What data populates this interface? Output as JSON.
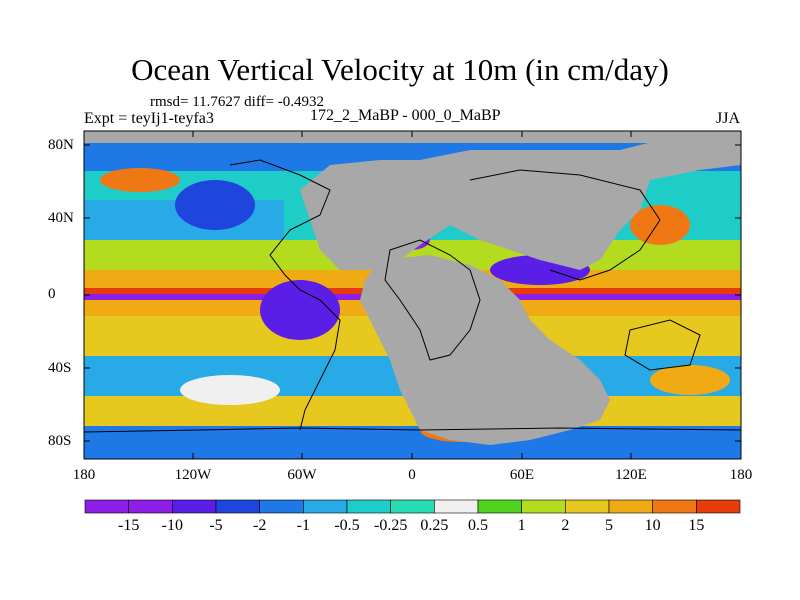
{
  "title": "Ocean Vertical Velocity at 10m (in cm/day)",
  "stats": "rmsd= 11.7627  diff= -0.4932",
  "expt": "Expt = teyIj1-teyfa3",
  "period": "172_2_MaBP - 000_0_MaBP",
  "season": "JJA",
  "lat_labels": [
    "80N",
    "40N",
    "0",
    "40S",
    "80S"
  ],
  "lon_labels": [
    "180",
    "120W",
    "60W",
    "0",
    "60E",
    "120E",
    "180"
  ],
  "colorbar": {
    "labels": [
      "-15",
      "-10",
      "-5",
      "-2",
      "-1",
      "-0.5",
      "-0.25",
      "0.25",
      "0.5",
      "1",
      "2",
      "5",
      "10",
      "15"
    ],
    "colors": [
      "#8c1ee6",
      "#5a1ee6",
      "#1e46dc",
      "#1e78e6",
      "#28aae6",
      "#1ecdc8",
      "#28dcb4",
      "#f0f0f0",
      "#50d21e",
      "#b4dc1e",
      "#e6c81e",
      "#f0aa14",
      "#f07814",
      "#e63c0a"
    ]
  },
  "land_color": "#a8a8a8"
}
